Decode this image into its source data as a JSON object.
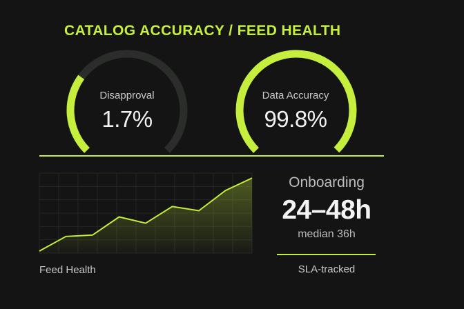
{
  "title": "CATALOG ACCURACY / FEED HEALTH",
  "colors": {
    "accent": "#c5ef3c",
    "track": "#2b2d2b",
    "background": "#141414"
  },
  "gauges": [
    {
      "label": "Disapproval",
      "value_text": "1.7%",
      "fill_fraction": 0.3
    },
    {
      "label": "Data Accuracy",
      "value_text": "99.8%",
      "fill_fraction": 0.998
    }
  ],
  "chart_data": {
    "type": "area",
    "label": "Feed Health",
    "x": [
      0,
      1,
      2,
      3,
      4,
      5,
      6,
      7,
      8
    ],
    "values": [
      3,
      24,
      26,
      52,
      43,
      67,
      61,
      90,
      108
    ],
    "ylim": [
      0,
      115
    ],
    "grid": true
  },
  "onboarding": {
    "title": "Onboarding",
    "value": "24–48h",
    "sub": "median 36h",
    "footer": "SLA-tracked"
  }
}
